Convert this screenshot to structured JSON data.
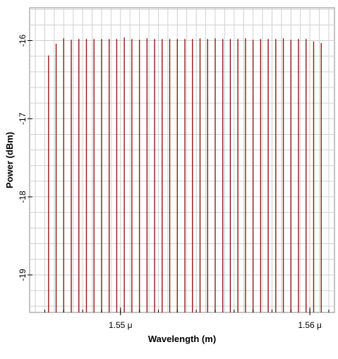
{
  "chart_data": {
    "type": "bar",
    "title": "",
    "xlabel": "Wavelength (m)",
    "ylabel": "Power (dBm)",
    "xlim": [
      1.5452e-06,
      1.5613e-06
    ],
    "ylim": [
      -19.48,
      -15.58
    ],
    "grid": true,
    "legend": "none",
    "x_ticks": [
      {
        "value": 1.55e-06,
        "label": "1.55 μ"
      },
      {
        "value": 1.56e-06,
        "label": "1.56 μ"
      }
    ],
    "y_ticks": [
      {
        "value": -16,
        "label": "-16"
      },
      {
        "value": -17,
        "label": "-17"
      },
      {
        "value": -18,
        "label": "-18"
      },
      {
        "value": -19,
        "label": "-19"
      }
    ],
    "series": [
      {
        "color": "#8b1a1a",
        "x": [
          1.5462e-06,
          1.5466e-06,
          1.547e-06,
          1.5474e-06,
          1.5478e-06,
          1.5482e-06,
          1.5486e-06,
          1.549e-06,
          1.5494e-06,
          1.5498e-06,
          1.5502e-06,
          1.5506e-06,
          1.551e-06,
          1.5514e-06,
          1.5518e-06,
          1.5522e-06,
          1.5526e-06,
          1.553e-06,
          1.5534e-06,
          1.5538e-06,
          1.5542e-06,
          1.5546e-06,
          1.555e-06,
          1.5554e-06,
          1.5558e-06,
          1.5562e-06,
          1.5566e-06,
          1.557e-06,
          1.5574e-06,
          1.5578e-06,
          1.5582e-06,
          1.5586e-06,
          1.559e-06,
          1.5594e-06,
          1.5598e-06,
          1.5602e-06,
          1.5606e-06
        ],
        "values": [
          -16.19,
          -16.04,
          -15.97,
          -15.99,
          -15.98,
          -15.98,
          -15.98,
          -15.98,
          -15.98,
          -15.98,
          -15.96,
          -15.98,
          -15.99,
          -15.97,
          -15.98,
          -15.98,
          -15.98,
          -15.98,
          -15.98,
          -15.98,
          -15.97,
          -15.98,
          -15.97,
          -15.98,
          -15.98,
          -15.98,
          -15.97,
          -15.99,
          -15.98,
          -15.98,
          -15.98,
          -15.97,
          -15.99,
          -15.98,
          -15.98,
          -16.01,
          -16.03
        ]
      }
    ]
  }
}
